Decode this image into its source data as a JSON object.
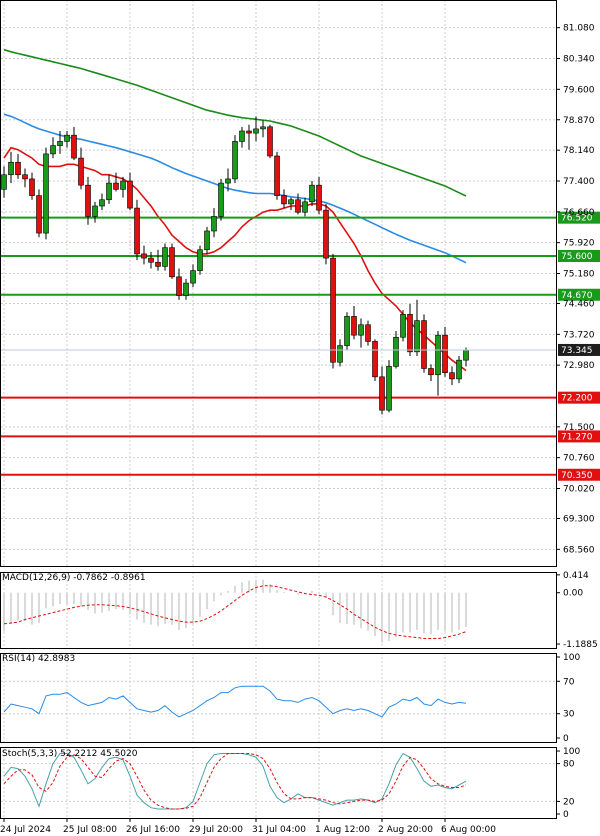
{
  "chart_data": [
    {
      "type": "candlestick",
      "panel": "price",
      "ylim": [
        68.16,
        81.6
      ],
      "price_scale": [
        "81.080",
        "80.340",
        "79.600",
        "78.870",
        "78.140",
        "77.400",
        "76.660",
        "75.920",
        "75.180",
        "74.460",
        "73.720",
        "72.980",
        "71.500",
        "70.760",
        "70.020",
        "69.300",
        "68.560"
      ],
      "current_price": {
        "label": "73.345",
        "value": 73.345
      },
      "levels": [
        {
          "label": "76.520",
          "value": 76.52,
          "color": "#1a9a1a"
        },
        {
          "label": "75.600",
          "value": 75.6,
          "color": "#1a9a1a"
        },
        {
          "label": "74.670",
          "value": 74.67,
          "color": "#1a9a1a"
        },
        {
          "label": "72.200",
          "value": 72.2,
          "color": "#e01010"
        },
        {
          "label": "71.270",
          "value": 71.27,
          "color": "#e01010"
        },
        {
          "label": "70.350",
          "value": 70.35,
          "color": "#e01010"
        }
      ],
      "ohlc": [
        [
          77.2,
          77.75,
          77.0,
          77.55
        ],
        [
          77.55,
          78.1,
          77.35,
          77.85
        ],
        [
          77.85,
          78.05,
          77.45,
          77.55
        ],
        [
          77.55,
          77.7,
          77.25,
          77.45
        ],
        [
          77.45,
          77.6,
          76.95,
          77.05
        ],
        [
          77.05,
          77.2,
          76.05,
          76.15
        ],
        [
          76.15,
          78.2,
          76.0,
          78.05
        ],
        [
          78.05,
          78.45,
          77.95,
          78.25
        ],
        [
          78.25,
          78.6,
          78.05,
          78.35
        ],
        [
          78.35,
          78.6,
          78.2,
          78.5
        ],
        [
          78.5,
          78.7,
          77.9,
          77.95
        ],
        [
          77.95,
          78.2,
          77.2,
          77.3
        ],
        [
          77.3,
          77.5,
          76.35,
          76.55
        ],
        [
          76.55,
          76.9,
          76.4,
          76.8
        ],
        [
          76.8,
          77.1,
          76.7,
          76.95
        ],
        [
          76.95,
          77.55,
          76.85,
          77.35
        ],
        [
          77.35,
          77.6,
          77.15,
          77.2
        ],
        [
          77.2,
          77.5,
          77.0,
          77.4
        ],
        [
          77.4,
          77.6,
          76.7,
          76.75
        ],
        [
          76.75,
          76.95,
          75.5,
          75.65
        ],
        [
          75.65,
          75.85,
          75.4,
          75.55
        ],
        [
          75.55,
          75.7,
          75.3,
          75.45
        ],
        [
          75.45,
          75.75,
          75.25,
          75.35
        ],
        [
          75.35,
          75.9,
          75.25,
          75.8
        ],
        [
          75.8,
          75.9,
          75.05,
          75.1
        ],
        [
          75.1,
          75.3,
          74.55,
          74.65
        ],
        [
          74.65,
          75.05,
          74.55,
          74.95
        ],
        [
          74.95,
          75.4,
          74.85,
          75.25
        ],
        [
          75.25,
          75.85,
          75.15,
          75.75
        ],
        [
          75.75,
          76.3,
          75.65,
          76.2
        ],
        [
          76.2,
          76.75,
          76.05,
          76.55
        ],
        [
          76.55,
          77.45,
          76.45,
          77.35
        ],
        [
          77.35,
          77.7,
          77.15,
          77.45
        ],
        [
          77.45,
          78.5,
          77.35,
          78.35
        ],
        [
          78.35,
          78.7,
          78.2,
          78.6
        ],
        [
          78.6,
          78.75,
          78.15,
          78.55
        ],
        [
          78.55,
          78.95,
          78.35,
          78.65
        ],
        [
          78.65,
          78.85,
          78.45,
          78.7
        ],
        [
          78.7,
          78.75,
          77.95,
          78.0
        ],
        [
          78.0,
          78.1,
          76.95,
          77.05
        ],
        [
          77.05,
          77.2,
          76.75,
          76.85
        ],
        [
          76.85,
          77.0,
          76.7,
          76.95
        ],
        [
          76.95,
          77.1,
          76.6,
          76.65
        ],
        [
          76.65,
          77.0,
          76.55,
          76.9
        ],
        [
          76.9,
          77.4,
          76.8,
          77.3
        ],
        [
          77.3,
          77.5,
          76.6,
          76.7
        ],
        [
          76.7,
          76.85,
          75.4,
          75.55
        ],
        [
          75.55,
          75.65,
          72.9,
          73.05
        ],
        [
          73.05,
          73.6,
          72.95,
          73.45
        ],
        [
          73.45,
          74.25,
          73.35,
          74.15
        ],
        [
          74.15,
          74.4,
          73.6,
          73.7
        ],
        [
          73.7,
          74.1,
          73.4,
          73.95
        ],
        [
          73.95,
          74.05,
          73.45,
          73.55
        ],
        [
          73.55,
          73.6,
          72.6,
          72.7
        ],
        [
          72.7,
          72.95,
          71.8,
          71.9
        ],
        [
          71.9,
          73.1,
          71.85,
          72.95
        ],
        [
          72.95,
          73.8,
          72.9,
          73.65
        ],
        [
          73.65,
          74.3,
          73.55,
          74.2
        ],
        [
          74.2,
          74.45,
          73.2,
          73.3
        ],
        [
          73.3,
          74.55,
          73.2,
          74.05
        ],
        [
          74.05,
          74.2,
          72.8,
          72.9
        ],
        [
          72.9,
          73.0,
          72.6,
          72.75
        ],
        [
          72.75,
          73.8,
          72.25,
          73.7
        ],
        [
          73.7,
          73.9,
          72.7,
          72.8
        ],
        [
          72.8,
          72.95,
          72.5,
          72.65
        ],
        [
          72.65,
          73.2,
          72.55,
          73.1
        ],
        [
          73.1,
          73.4,
          72.95,
          73.345
        ]
      ],
      "series": [
        {
          "color": "#e01010",
          "values": [
            77.95,
            78.2,
            78.15,
            78.05,
            77.95,
            77.8,
            77.75,
            77.75,
            77.75,
            77.8,
            77.8,
            77.75,
            77.7,
            77.65,
            77.55,
            77.55,
            77.5,
            77.45,
            77.35,
            77.2,
            77.0,
            76.8,
            76.55,
            76.35,
            76.1,
            75.95,
            75.8,
            75.7,
            75.65,
            75.65,
            75.7,
            75.8,
            75.95,
            76.1,
            76.3,
            76.45,
            76.55,
            76.65,
            76.7,
            76.7,
            76.75,
            76.8,
            76.8,
            76.8,
            76.85,
            76.85,
            76.8,
            76.65,
            76.4,
            76.15,
            75.9,
            75.6,
            75.25,
            74.95,
            74.7,
            74.55,
            74.4,
            74.2,
            74.0,
            73.85,
            73.7,
            73.55,
            73.4,
            73.25,
            73.1,
            72.98,
            72.85
          ]
        },
        {
          "color": "#2a8be6",
          "values": [
            79.0,
            78.95,
            78.88,
            78.8,
            78.72,
            78.65,
            78.6,
            78.55,
            78.5,
            78.46,
            78.42,
            78.4,
            78.36,
            78.32,
            78.28,
            78.24,
            78.2,
            78.15,
            78.1,
            78.05,
            78.0,
            77.95,
            77.88,
            77.8,
            77.72,
            77.65,
            77.58,
            77.52,
            77.46,
            77.4,
            77.34,
            77.28,
            77.22,
            77.18,
            77.15,
            77.12,
            77.1,
            77.1,
            77.1,
            77.08,
            77.05,
            77.02,
            77.0,
            76.98,
            76.95,
            76.92,
            76.88,
            76.82,
            76.75,
            76.68,
            76.6,
            76.52,
            76.44,
            76.36,
            76.28,
            76.2,
            76.12,
            76.05,
            75.98,
            75.92,
            75.86,
            75.8,
            75.74,
            75.68,
            75.6,
            75.52,
            75.44
          ]
        },
        {
          "color": "#1a8a1a",
          "values": [
            80.55,
            80.5,
            80.46,
            80.42,
            80.38,
            80.34,
            80.3,
            80.26,
            80.22,
            80.18,
            80.14,
            80.1,
            80.05,
            80.0,
            79.95,
            79.9,
            79.85,
            79.8,
            79.75,
            79.7,
            79.64,
            79.58,
            79.52,
            79.46,
            79.4,
            79.34,
            79.28,
            79.22,
            79.16,
            79.1,
            79.06,
            79.02,
            78.98,
            78.95,
            78.92,
            78.9,
            78.88,
            78.86,
            78.84,
            78.8,
            78.76,
            78.72,
            78.66,
            78.6,
            78.54,
            78.48,
            78.4,
            78.32,
            78.24,
            78.16,
            78.08,
            78.0,
            77.94,
            77.88,
            77.82,
            77.76,
            77.7,
            77.64,
            77.58,
            77.52,
            77.46,
            77.4,
            77.34,
            77.28,
            77.2,
            77.12,
            77.04
          ]
        }
      ]
    },
    {
      "type": "bar",
      "panel": "macd",
      "title": "MACD(12,26,9) -0.7862 -0.8961",
      "ticks": [
        {
          "label": "0.414",
          "value": 0.414
        },
        {
          "label": "0.00",
          "value": 0
        },
        {
          "label": "-1.1885",
          "value": -1.1885
        }
      ],
      "ylim": [
        -1.28,
        0.48
      ],
      "bar_color": "#b4b4b4",
      "signal_color": "#e01010",
      "values": [
        -0.9,
        -0.72,
        -0.64,
        -0.66,
        -0.74,
        -0.7,
        -0.36,
        -0.32,
        -0.26,
        -0.26,
        -0.26,
        -0.32,
        -0.4,
        -0.48,
        -0.46,
        -0.42,
        -0.38,
        -0.4,
        -0.5,
        -0.62,
        -0.7,
        -0.74,
        -0.78,
        -0.72,
        -0.74,
        -0.86,
        -0.82,
        -0.72,
        -0.56,
        -0.38,
        -0.2,
        -0.06,
        0.04,
        0.16,
        0.24,
        0.28,
        0.3,
        0.3,
        0.2,
        0.06,
        0.02,
        0.0,
        -0.04,
        -0.02,
        0.04,
        0.02,
        -0.12,
        -0.52,
        -0.7,
        -0.72,
        -0.74,
        -0.82,
        -0.88,
        -1.0,
        -1.16,
        -1.12,
        -1.04,
        -0.92,
        -0.92,
        -0.86,
        -0.94,
        -0.96,
        -0.86,
        -0.9,
        -0.92,
        -0.86,
        -0.79
      ],
      "signal": [
        -0.72,
        -0.7,
        -0.68,
        -0.62,
        -0.58,
        -0.54,
        -0.5,
        -0.46,
        -0.42,
        -0.38,
        -0.34,
        -0.31,
        -0.29,
        -0.28,
        -0.28,
        -0.29,
        -0.3,
        -0.32,
        -0.35,
        -0.39,
        -0.44,
        -0.49,
        -0.54,
        -0.58,
        -0.62,
        -0.66,
        -0.68,
        -0.68,
        -0.66,
        -0.6,
        -0.52,
        -0.42,
        -0.3,
        -0.18,
        -0.06,
        0.04,
        0.12,
        0.16,
        0.16,
        0.14,
        0.1,
        0.06,
        0.02,
        -0.02,
        -0.04,
        -0.06,
        -0.1,
        -0.18,
        -0.28,
        -0.38,
        -0.5,
        -0.6,
        -0.7,
        -0.8,
        -0.88,
        -0.94,
        -0.98,
        -1.0,
        -1.02,
        -1.04,
        -1.06,
        -1.06,
        -1.06,
        -1.04,
        -1.0,
        -0.96,
        -0.9
      ]
    },
    {
      "type": "line",
      "panel": "rsi",
      "title": "RSI(14) 42.8983",
      "ticks": [
        {
          "label": "100",
          "value": 100
        },
        {
          "label": "70",
          "value": 70
        },
        {
          "label": "30",
          "value": 30
        },
        {
          "label": "0",
          "value": 0
        }
      ],
      "ylim": [
        0,
        100
      ],
      "color": "#2a8be6",
      "values": [
        32,
        42,
        40,
        38,
        36,
        30,
        52,
        54,
        54,
        56,
        50,
        44,
        40,
        42,
        44,
        50,
        48,
        52,
        44,
        36,
        34,
        32,
        34,
        40,
        32,
        26,
        30,
        34,
        40,
        46,
        50,
        56,
        56,
        62,
        64,
        64,
        64,
        64,
        58,
        48,
        46,
        46,
        44,
        48,
        50,
        46,
        38,
        30,
        34,
        36,
        34,
        36,
        34,
        30,
        26,
        38,
        42,
        48,
        46,
        50,
        42,
        40,
        48,
        44,
        42,
        44,
        43
      ]
    },
    {
      "type": "line",
      "panel": "stoch",
      "title": "Stoch(5,3,3) 52.2212 45.5020",
      "ticks": [
        {
          "label": "100",
          "value": 100
        },
        {
          "label": "80",
          "value": 80
        },
        {
          "label": "20",
          "value": 20
        },
        {
          "label": "0",
          "value": 0
        }
      ],
      "ylim": [
        0,
        100
      ],
      "series": [
        {
          "color": "#4aa0a8",
          "values": [
            60,
            74,
            72,
            60,
            40,
            12,
            48,
            80,
            96,
            96,
            90,
            70,
            48,
            56,
            74,
            88,
            90,
            86,
            60,
            30,
            18,
            10,
            8,
            8,
            8,
            8,
            10,
            20,
            50,
            80,
            94,
            96,
            96,
            96,
            96,
            94,
            90,
            76,
            44,
            26,
            18,
            24,
            32,
            26,
            26,
            22,
            18,
            14,
            18,
            22,
            22,
            24,
            22,
            18,
            24,
            48,
            78,
            96,
            90,
            72,
            52,
            44,
            46,
            42,
            40,
            46,
            52
          ]
        },
        {
          "color": "#e01010",
          "values": [
            48,
            60,
            70,
            70,
            62,
            42,
            36,
            50,
            76,
            90,
            94,
            88,
            74,
            60,
            58,
            72,
            84,
            88,
            80,
            60,
            38,
            22,
            14,
            10,
            8,
            8,
            9,
            12,
            26,
            50,
            74,
            88,
            96,
            96,
            96,
            96,
            94,
            88,
            72,
            50,
            32,
            24,
            24,
            26,
            26,
            24,
            22,
            18,
            16,
            18,
            20,
            22,
            22,
            20,
            22,
            32,
            52,
            76,
            90,
            86,
            72,
            56,
            48,
            44,
            42,
            42,
            46
          ]
        }
      ]
    }
  ],
  "time_axis": [
    {
      "label": "24 Jul 2024",
      "bar": 0
    },
    {
      "label": "25 Jul 08:00",
      "bar": 9
    },
    {
      "label": "26 Jul 16:00",
      "bar": 18
    },
    {
      "label": "29 Jul 20:00",
      "bar": 27
    },
    {
      "label": "31 Jul 04:00",
      "bar": 36
    },
    {
      "label": "1 Aug 12:00",
      "bar": 45
    },
    {
      "label": "2 Aug 20:00",
      "bar": 54
    },
    {
      "label": "6 Aug 00:00",
      "bar": 63
    }
  ],
  "colors": {
    "bull": "#1a9a1a",
    "bear": "#e01010",
    "wick": "#000000",
    "grid": "#cfcfcf",
    "current_price_bg": "#1e1e1e"
  }
}
